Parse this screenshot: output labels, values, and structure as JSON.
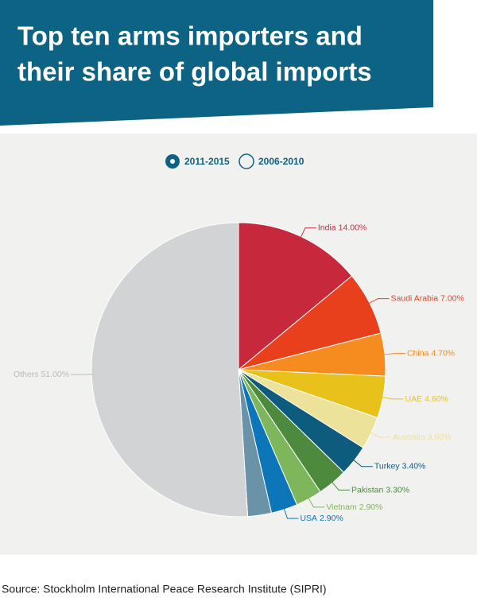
{
  "header": {
    "title_lines": [
      "Top ten arms importers and",
      "their share of global imports"
    ]
  },
  "chart_data": {
    "type": "pie",
    "legend_items": [
      "2011-2015",
      "2006-2010"
    ],
    "categories": [
      "India",
      "Saudi Arabia",
      "China",
      "UAE",
      "Australia",
      "Turkey",
      "Pakistan",
      "Vietnam",
      "USA",
      null,
      "Others"
    ],
    "values": [
      14.0,
      7.0,
      4.7,
      4.6,
      3.6,
      3.4,
      3.3,
      2.9,
      2.9,
      2.6,
      51.0
    ],
    "value_labels": [
      "14.00%",
      "7.00%",
      "4.70%",
      "4.60%",
      "3.60%",
      "3.40%",
      "3.30%",
      "2.90%",
      "2.90%",
      null,
      "51.00%"
    ],
    "colors": [
      "#c8283c",
      "#e8401c",
      "#f68b1f",
      "#e8c11a",
      "#ede29a",
      "#0d5c7e",
      "#4e8a3e",
      "#7db65b",
      "#0c76b8",
      "#6a93a8",
      "#d2d3d5"
    ]
  },
  "footer": {
    "source": "Source: Stockholm International Peace Research Institute (SIPRI)"
  }
}
